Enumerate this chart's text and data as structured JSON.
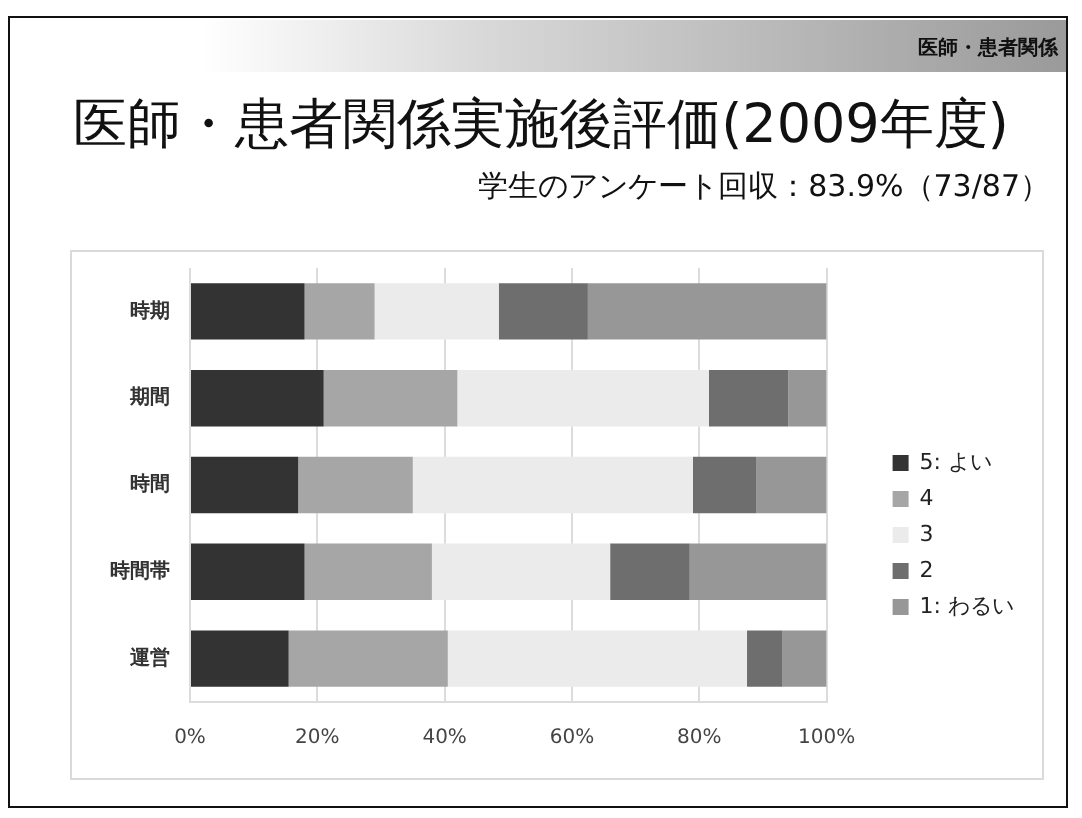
{
  "chart_data": {
    "type": "bar",
    "orientation": "horizontal",
    "stacked": true,
    "title": "医師・患者関係実施後評価(2009年度)",
    "subtitle": "学生のアンケート回収：83.9%（73/87）",
    "annotations": [
      "医師・患者関係"
    ],
    "categories": [
      "時期",
      "期間",
      "時間",
      "時間帯",
      "運営"
    ],
    "series": [
      {
        "name": "5: よい",
        "color": "#333333",
        "values": [
          18,
          21,
          17,
          18,
          15.5
        ]
      },
      {
        "name": "4",
        "color": "#a6a6a6",
        "values": [
          11,
          21,
          18,
          20,
          25
        ]
      },
      {
        "name": "3",
        "color": "#ebebeb",
        "values": [
          19.5,
          39.5,
          44,
          28,
          47
        ]
      },
      {
        "name": "2",
        "color": "#6e6e6e",
        "values": [
          14,
          12.5,
          10,
          12.5,
          5.5
        ]
      },
      {
        "name": "1: わるい",
        "color": "#979797",
        "values": [
          37.5,
          6,
          11,
          21.5,
          7
        ]
      }
    ],
    "xlim": [
      0,
      100
    ],
    "xticks": [
      {
        "value": 0,
        "label": "0%"
      },
      {
        "value": 20,
        "label": "20%"
      },
      {
        "value": 40,
        "label": "40%"
      },
      {
        "value": 60,
        "label": "60%"
      },
      {
        "value": 80,
        "label": "80%"
      },
      {
        "value": 100,
        "label": "100%"
      }
    ],
    "grid": "x",
    "legend": "right"
  }
}
